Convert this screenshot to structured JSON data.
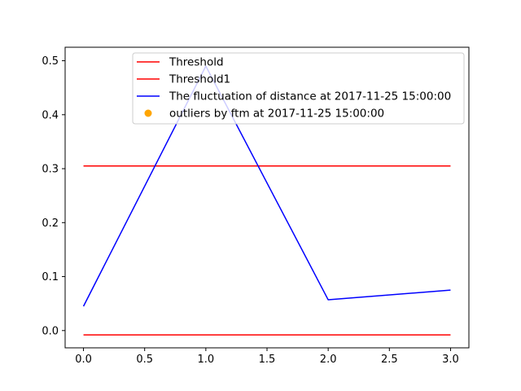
{
  "chart_data": {
    "type": "line",
    "title": "",
    "xlabel": "",
    "ylabel": "",
    "xlim": [
      -0.15,
      3.15
    ],
    "ylim": [
      -0.032,
      0.525
    ],
    "grid": false,
    "legend_position": "top-center",
    "xticks": [
      0.0,
      0.5,
      1.0,
      1.5,
      2.0,
      2.5,
      3.0
    ],
    "xtick_labels": [
      "0.0",
      "0.5",
      "1.0",
      "1.5",
      "2.0",
      "2.5",
      "3.0"
    ],
    "yticks": [
      0.0,
      0.1,
      0.2,
      0.3,
      0.4,
      0.5
    ],
    "ytick_labels": [
      "0.0",
      "0.1",
      "0.2",
      "0.3",
      "0.4",
      "0.5"
    ],
    "series": [
      {
        "name": "Threshold",
        "kind": "line",
        "color": "#ff0000",
        "x": [
          0,
          1,
          2,
          3
        ],
        "y": [
          0.305,
          0.305,
          0.305,
          0.305
        ]
      },
      {
        "name": "Threshold1",
        "kind": "line",
        "color": "#ff0000",
        "x": [
          0,
          1,
          2,
          3
        ],
        "y": [
          -0.008,
          -0.008,
          -0.008,
          -0.008
        ]
      },
      {
        "name": "The fluctuation of distance at 2017-11-25 15:00:00",
        "kind": "line",
        "color": "#0000ff",
        "x": [
          0,
          1,
          2,
          3
        ],
        "y": [
          0.045,
          0.49,
          0.057,
          0.075
        ]
      },
      {
        "name": "outliers by ftm at 2017-11-25 15:00:00",
        "kind": "scatter",
        "color": "#ffa500",
        "x": [],
        "y": []
      }
    ]
  }
}
